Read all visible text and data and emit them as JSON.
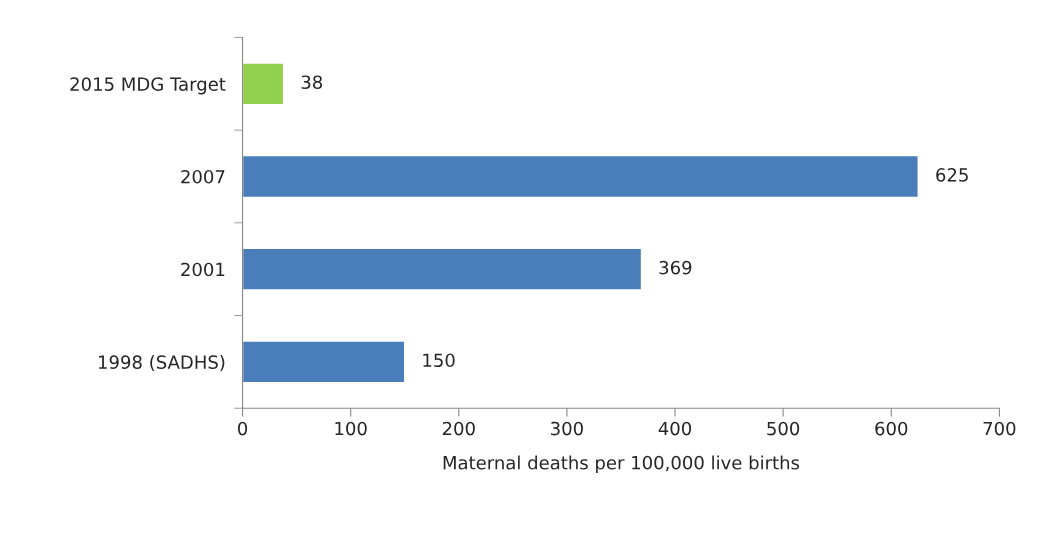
{
  "chart_data": {
    "type": "bar",
    "orientation": "horizontal",
    "categories": [
      "2015 MDG Target",
      "2007",
      "2001",
      "1998 (SADHS)"
    ],
    "values": [
      38,
      625,
      369,
      150
    ],
    "colors": [
      "#92d050",
      "#4a7ebb",
      "#4a7ebb",
      "#4a7ebb"
    ],
    "xlabel": "Maternal deaths per 100,000 live births",
    "xlim": [
      0,
      700
    ],
    "xticks": [
      0,
      100,
      200,
      300,
      400,
      500,
      600,
      700
    ],
    "data_labels": true,
    "grid": false,
    "legend": false
  }
}
